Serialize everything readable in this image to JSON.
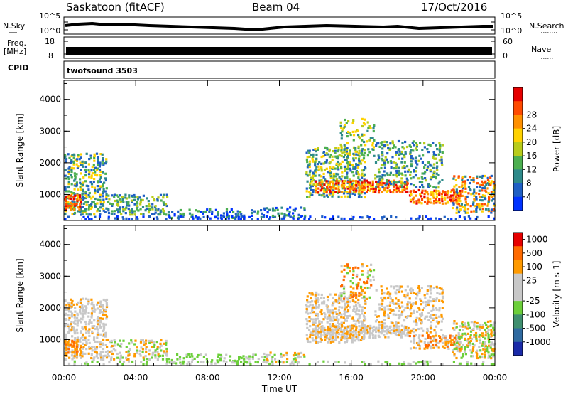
{
  "header": {
    "title": "Saskatoon (fitACF)",
    "beam": "Beam 04",
    "date": "17/Oct/2016"
  },
  "strip_labels": {
    "nsky": "N.Sky",
    "nsky_ticks": [
      "10^5",
      "10^0"
    ],
    "nsearch": "N.Search",
    "nsearch_ticks": [
      "10^5",
      "10^0"
    ],
    "freq_line1": "Freq.",
    "freq_line2": "[MHz]",
    "freq_ticks": [
      "18",
      "8"
    ],
    "nave": "Nave",
    "nave_ticks": [
      "60",
      "0"
    ],
    "cpid": "CPID",
    "cpid_value": "twofsound 3503"
  },
  "chart_data": [
    {
      "type": "heatmap",
      "title": "",
      "ylabel": "Slant Range [km]",
      "xlabel": "",
      "x_ticks": [
        "00:00",
        "04:00",
        "08:00",
        "12:00",
        "16:00",
        "20:00",
        "00:00"
      ],
      "y_ticks": [
        "1000",
        "2000",
        "3000",
        "4000"
      ],
      "ylim": [
        180,
        4600
      ],
      "colorbar": {
        "label": "Power [dB]",
        "ticks": [
          "4",
          "8",
          "12",
          "16",
          "20",
          "24",
          "28"
        ],
        "colors": [
          "#0032ff",
          "#1f5fc4",
          "#2e8a8a",
          "#4caf50",
          "#b8cc1a",
          "#ffd200",
          "#ff9000",
          "#ff4a00",
          "#e60000"
        ]
      }
    },
    {
      "type": "heatmap",
      "title": "",
      "ylabel": "Slant Range [km]",
      "xlabel": "Time UT",
      "x_ticks": [
        "00:00",
        "04:00",
        "08:00",
        "12:00",
        "16:00",
        "20:00",
        "00:00"
      ],
      "y_ticks": [
        "1000",
        "2000",
        "3000",
        "4000"
      ],
      "ylim": [
        180,
        4600
      ],
      "colorbar": {
        "label": "Velocity [m s-1]",
        "ticks": [
          "1000",
          "500",
          "100",
          "25",
          "-25",
          "-100",
          "-500",
          "-1000"
        ],
        "colors": [
          "#1a2aa8",
          "#2f6aa0",
          "#3f8f6f",
          "#6ccf3a",
          "#c8c8c8",
          "#c8c8c8",
          "#ff9a00",
          "#ff6a00",
          "#e60000"
        ]
      }
    }
  ]
}
